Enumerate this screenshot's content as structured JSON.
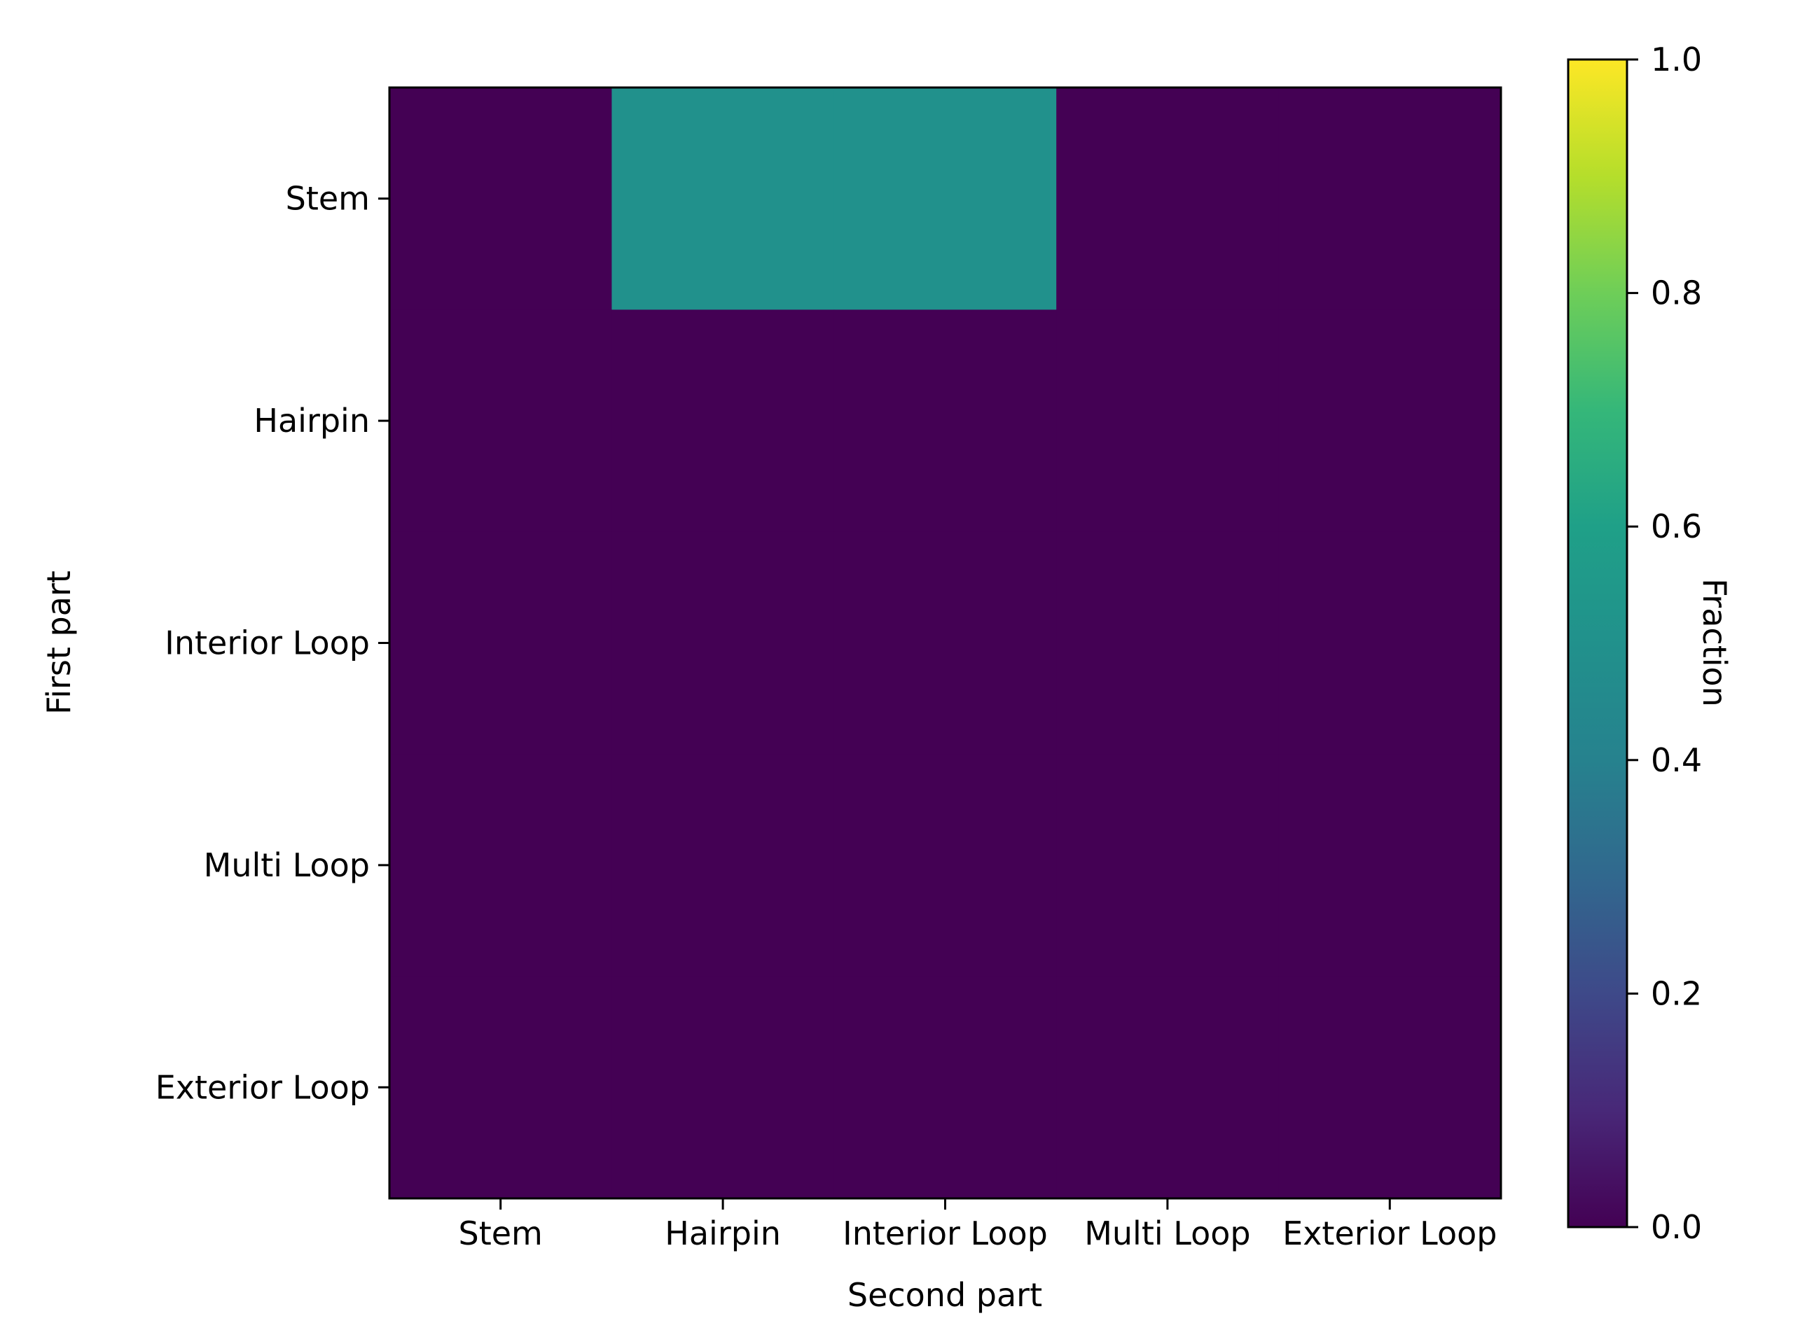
{
  "chart_data": {
    "type": "heatmap",
    "x_categories": [
      "Stem",
      "Hairpin",
      "Interior Loop",
      "Multi Loop",
      "Exterior Loop"
    ],
    "y_categories": [
      "Stem",
      "Hairpin",
      "Interior Loop",
      "Multi Loop",
      "Exterior Loop"
    ],
    "values": [
      [
        0,
        0.5,
        0.5,
        0,
        0
      ],
      [
        0,
        0,
        0,
        0,
        0
      ],
      [
        0,
        0,
        0,
        0,
        0
      ],
      [
        0,
        0,
        0,
        0,
        0
      ],
      [
        0,
        0,
        0,
        0,
        0
      ]
    ],
    "xlabel": "Second part",
    "ylabel": "First part",
    "colormap": "viridis",
    "colorbar": {
      "label": "Fraction",
      "range": [
        0,
        1
      ],
      "ticks": [
        0,
        0.2,
        0.4,
        0.6,
        0.8,
        1
      ],
      "tick_labels": [
        "0.0",
        "0.2",
        "0.4",
        "0.6",
        "0.8",
        "1.0"
      ]
    },
    "grid": false
  }
}
